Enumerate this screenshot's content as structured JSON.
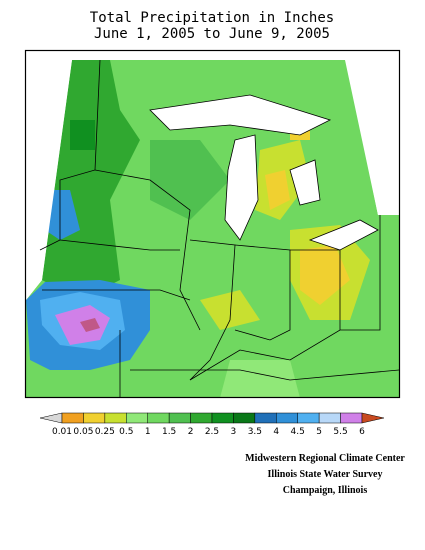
{
  "title": [
    "Total Precipitation in Inches",
    "June 1, 2005 to June 9, 2005"
  ],
  "legend": {
    "labels": [
      "0.01",
      "0.05",
      "0.25",
      "0.5",
      "1",
      "1.5",
      "2",
      "2.5",
      "3",
      "3.5",
      "4",
      "4.5",
      "5",
      "5.5",
      "6"
    ],
    "colors": [
      "#d8d8d8",
      "#f0a020",
      "#f0d030",
      "#c8e030",
      "#90e878",
      "#70d860",
      "#50c050",
      "#30a830",
      "#109020",
      "#0a7818",
      "#2070b8",
      "#3090d8",
      "#50b0f0",
      "#b8d8f8",
      "#d080e8",
      "#c05888",
      "#c84a20"
    ]
  },
  "credits": [
    "Midwestern Regional Climate Center",
    "Illinois State Water Survey",
    "Champaign, Illinois"
  ]
}
